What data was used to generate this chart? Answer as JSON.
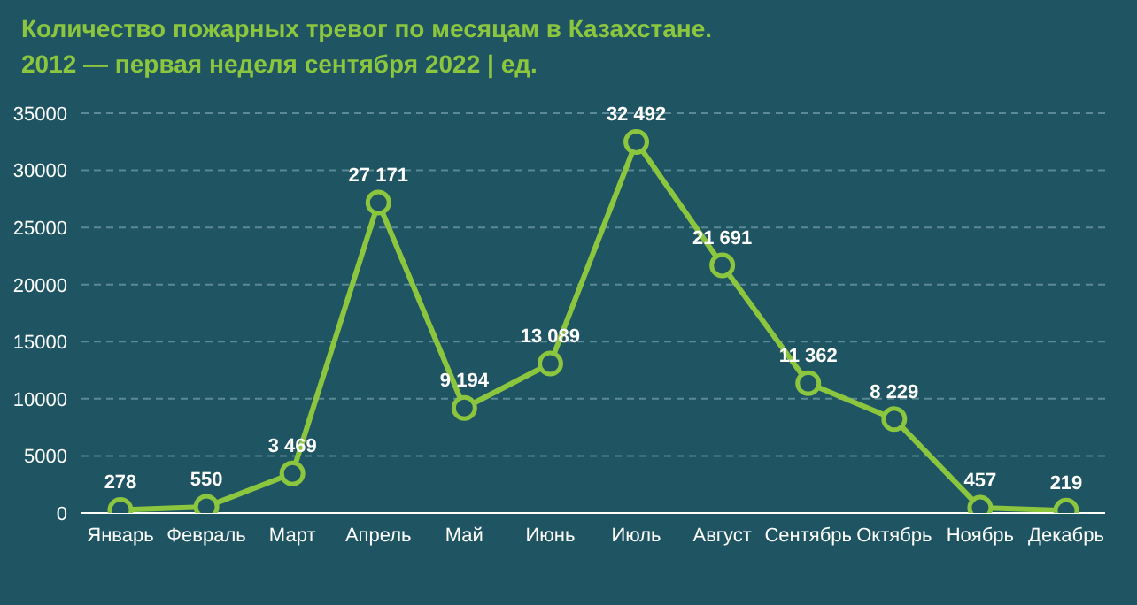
{
  "chart_data": {
    "type": "line",
    "title": "Количество пожарных тревог по месяцам в Казахстане.",
    "subtitle": "2012 — первая неделя сентября 2022 | ед.",
    "categories": [
      "Январь",
      "Февраль",
      "Март",
      "Апрель",
      "Май",
      "Июнь",
      "Июль",
      "Август",
      "Сентябрь",
      "Октябрь",
      "Ноябрь",
      "Декабрь"
    ],
    "series": [
      {
        "color": "#8cc63f",
        "values": [
          278,
          550,
          3469,
          27171,
          9194,
          13089,
          32492,
          21691,
          11362,
          8229,
          457,
          219
        ],
        "value_labels": [
          "278",
          "550",
          "3 469",
          "27 171",
          "9 194",
          "13 089",
          "32 492",
          "21 691",
          "11 362",
          "8 229",
          "457",
          "219"
        ]
      }
    ],
    "ylim": [
      0,
      35000
    ],
    "yticks": [
      0,
      5000,
      10000,
      15000,
      20000,
      25000,
      30000,
      35000
    ],
    "grid": "y",
    "marker": "circle",
    "line_style": "solid"
  }
}
